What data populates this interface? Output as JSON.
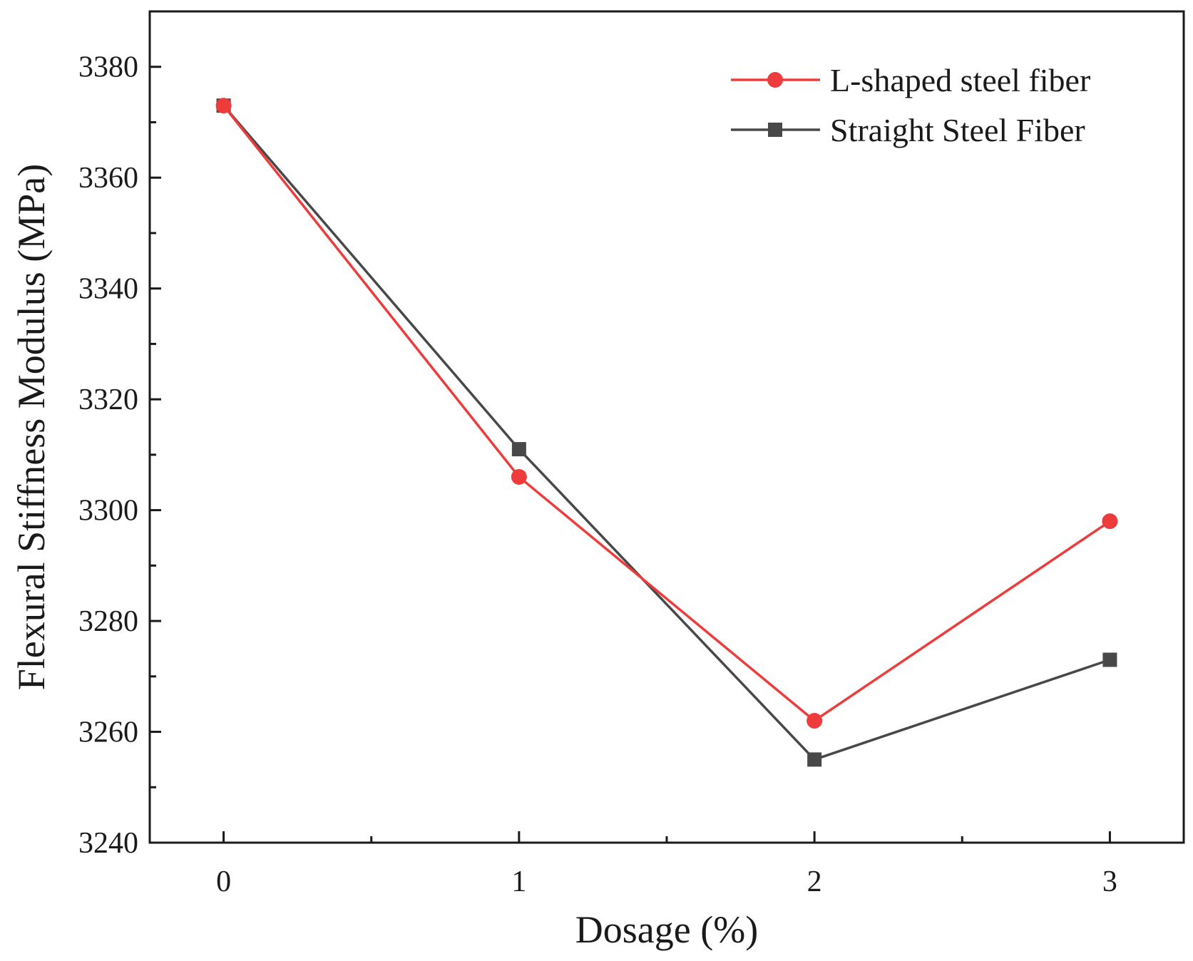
{
  "chart_data": {
    "type": "line",
    "title": "",
    "xlabel": "Dosage (%)",
    "ylabel": "Flexural Stiffness Modulus (MPa)",
    "x": [
      0,
      1,
      2,
      3
    ],
    "xticks": [
      "0",
      "1",
      "2",
      "3"
    ],
    "xlim": [
      -0.25,
      3.25
    ],
    "ylim": [
      3240,
      3390
    ],
    "yticks": [
      3240,
      3260,
      3280,
      3300,
      3320,
      3340,
      3360,
      3380
    ],
    "grid": false,
    "legend_position": "top-right",
    "series": [
      {
        "name": "L-shaped steel fiber",
        "values": [
          3373,
          3306,
          3262,
          3298
        ],
        "color": "#ee3b3b",
        "marker": "circle"
      },
      {
        "name": "Straight Steel Fiber",
        "values": [
          3373,
          3311,
          3255,
          3273
        ],
        "color": "#484848",
        "marker": "square"
      }
    ]
  }
}
